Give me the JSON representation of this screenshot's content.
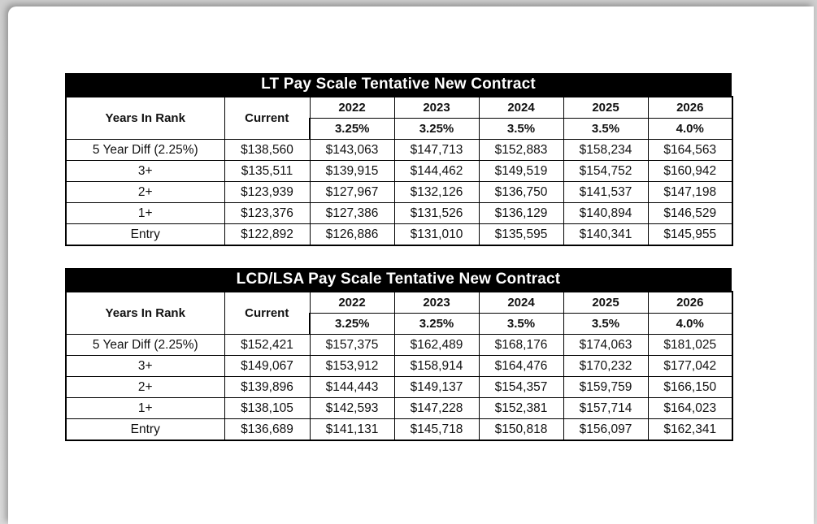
{
  "colors": {
    "backdrop": "#d4d4d4",
    "paper": "#ffffff",
    "title_bar_bg": "#000000",
    "title_bar_text": "#ffffff",
    "table_border": "#000000"
  },
  "tables": [
    {
      "title": "LT Pay Scale Tentative New Contract",
      "header": {
        "col1": "Years In Rank",
        "col2": "Current",
        "years": [
          "2022",
          "2023",
          "2024",
          "2025",
          "2026"
        ],
        "rates": [
          "3.25%",
          "3.25%",
          "3.5%",
          "3.5%",
          "4.0%"
        ]
      },
      "rows": [
        [
          "5 Year Diff (2.25%)",
          "$138,560",
          "$143,063",
          "$147,713",
          "$152,883",
          "$158,234",
          "$164,563"
        ],
        [
          "3+",
          "$135,511",
          "$139,915",
          "$144,462",
          "$149,519",
          "$154,752",
          "$160,942"
        ],
        [
          "2+",
          "$123,939",
          "$127,967",
          "$132,126",
          "$136,750",
          "$141,537",
          "$147,198"
        ],
        [
          "1+",
          "$123,376",
          "$127,386",
          "$131,526",
          "$136,129",
          "$140,894",
          "$146,529"
        ],
        [
          "Entry",
          "$122,892",
          "$126,886",
          "$131,010",
          "$135,595",
          "$140,341",
          "$145,955"
        ]
      ]
    },
    {
      "title": "LCD/LSA Pay Scale Tentative New Contract",
      "header": {
        "col1": "Years In Rank",
        "col2": "Current",
        "years": [
          "2022",
          "2023",
          "2024",
          "2025",
          "2026"
        ],
        "rates": [
          "3.25%",
          "3.25%",
          "3.5%",
          "3.5%",
          "4.0%"
        ]
      },
      "rows": [
        [
          "5 Year Diff (2.25%)",
          "$152,421",
          "$157,375",
          "$162,489",
          "$168,176",
          "$174,063",
          "$181,025"
        ],
        [
          "3+",
          "$149,067",
          "$153,912",
          "$158,914",
          "$164,476",
          "$170,232",
          "$177,042"
        ],
        [
          "2+",
          "$139,896",
          "$144,443",
          "$149,137",
          "$154,357",
          "$159,759",
          "$166,150"
        ],
        [
          "1+",
          "$138,105",
          "$142,593",
          "$147,228",
          "$152,381",
          "$157,714",
          "$164,023"
        ],
        [
          "Entry",
          "$136,689",
          "$141,131",
          "$145,718",
          "$150,818",
          "$156,097",
          "$162,341"
        ]
      ]
    }
  ]
}
